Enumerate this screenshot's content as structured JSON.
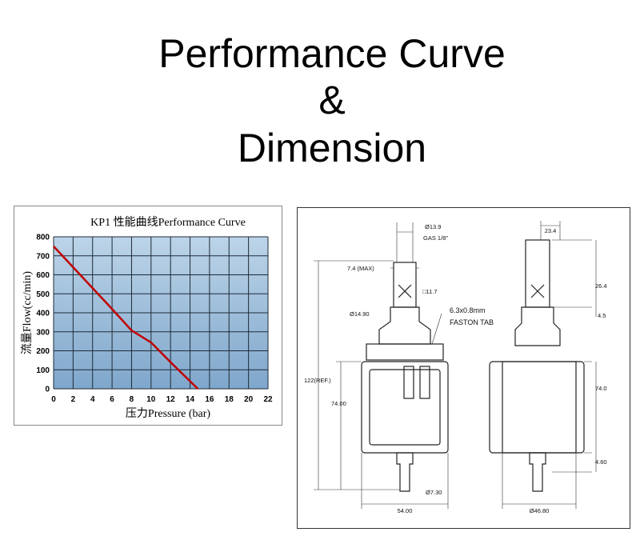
{
  "header": {
    "lines": [
      "Performance Curve",
      "&",
      "Dimension"
    ]
  },
  "chart_data": {
    "type": "line",
    "title": "KP1 性能曲线Performance Curve",
    "x_label": "压力Pressure (bar)",
    "y_label": "流量Flow(cc/min)",
    "x": [
      0,
      2,
      4,
      6,
      8,
      10,
      12,
      14,
      14.8
    ],
    "values": [
      750,
      640,
      530,
      420,
      307,
      244,
      140,
      40,
      0
    ],
    "color": "#c00000",
    "xlim": [
      0,
      22
    ],
    "xticks": [
      0,
      2,
      4,
      6,
      8,
      10,
      12,
      14,
      16,
      18,
      20,
      22
    ],
    "ylim": [
      0,
      800
    ],
    "yticks": [
      0,
      100,
      200,
      300,
      400,
      500,
      600,
      700,
      800
    ],
    "grid": true
  },
  "drawing": {
    "labels": [
      "Ø13.9",
      "GAS 1/8\"",
      "7.4 (MAX)",
      "□11.7",
      "Ø14.90",
      "6.3x0.8mm",
      "FASTON TAB",
      "122(REF.)",
      "74.00",
      "Ø7.30",
      "54.00",
      "23.4",
      "26.4",
      "4.5",
      "74.0",
      "4.60",
      "Ø46.80"
    ]
  }
}
